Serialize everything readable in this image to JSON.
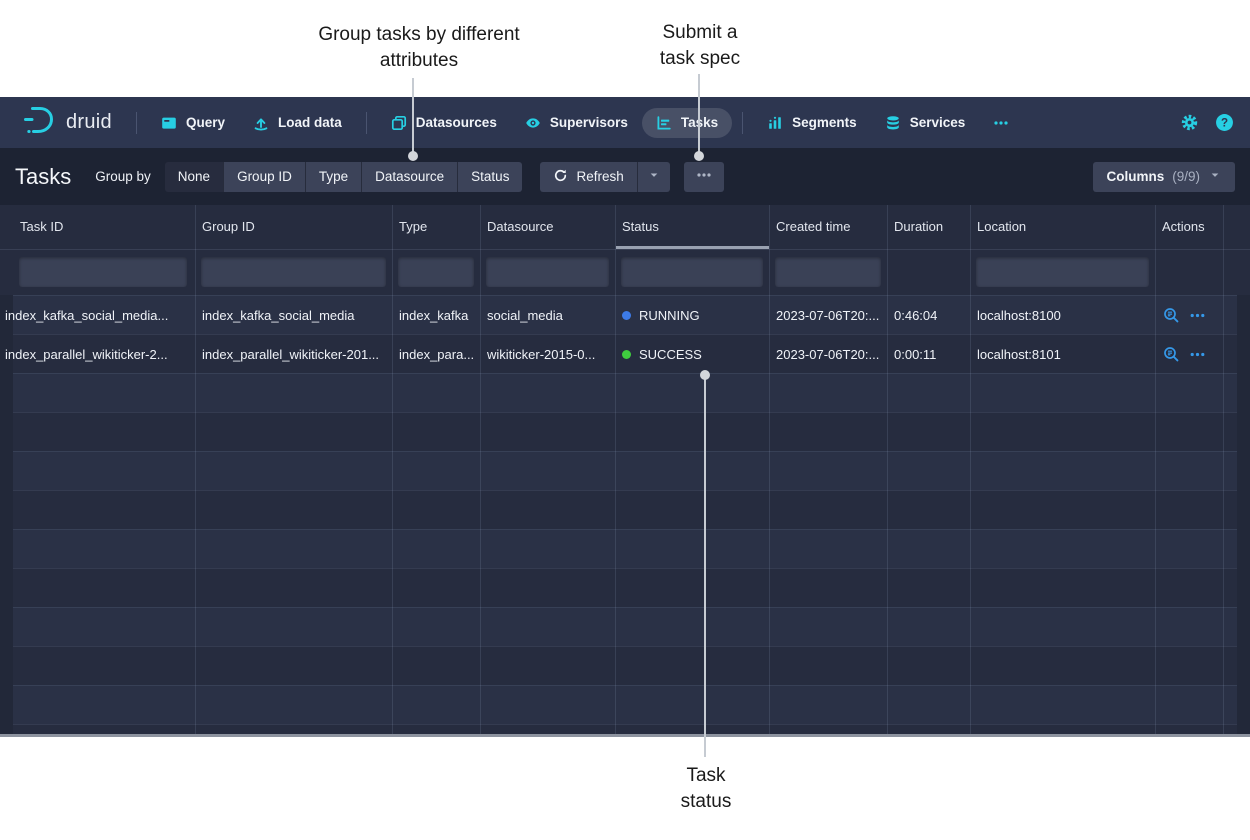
{
  "annotations": {
    "group_by": {
      "line1": "Group tasks by different",
      "line2": "attributes"
    },
    "submit": {
      "line1": "Submit a",
      "line2": "task spec"
    },
    "status": {
      "line1": "Task",
      "line2": "status"
    }
  },
  "navbar": {
    "brand": "druid",
    "items": [
      {
        "label": "Query",
        "icon": "console",
        "active": false,
        "group_end": false
      },
      {
        "label": "Load data",
        "icon": "upload",
        "active": false,
        "group_end": true
      },
      {
        "label": "Datasources",
        "icon": "layers",
        "active": false,
        "group_end": false
      },
      {
        "label": "Supervisors",
        "icon": "eye",
        "active": false,
        "group_end": false
      },
      {
        "label": "Tasks",
        "icon": "gantt",
        "active": true,
        "group_end": true
      },
      {
        "label": "Segments",
        "icon": "barchart",
        "active": false,
        "group_end": false
      },
      {
        "label": "Services",
        "icon": "database",
        "active": false,
        "group_end": false
      },
      {
        "label": "",
        "icon": "more",
        "active": false,
        "group_end": false
      }
    ],
    "right_icons": [
      "gear",
      "help"
    ]
  },
  "toolbar": {
    "title": "Tasks",
    "group_by_label": "Group by",
    "group_options": [
      "None",
      "Group ID",
      "Type",
      "Datasource",
      "Status"
    ],
    "active_group": "None",
    "refresh_label": "Refresh",
    "columns_label": "Columns",
    "columns_count": "(9/9)"
  },
  "table": {
    "columns": [
      {
        "label": "Task ID",
        "key": "task_id",
        "width": 195,
        "filter": true,
        "sorted": false
      },
      {
        "label": "Group ID",
        "key": "group_id",
        "width": 197,
        "filter": true,
        "sorted": false
      },
      {
        "label": "Type",
        "key": "type",
        "width": 88,
        "filter": true,
        "sorted": false
      },
      {
        "label": "Datasource",
        "key": "datasource",
        "width": 135,
        "filter": true,
        "sorted": false
      },
      {
        "label": "Status",
        "key": "status",
        "width": 154,
        "filter": true,
        "sorted": true
      },
      {
        "label": "Created time",
        "key": "created_time",
        "width": 118,
        "filter": true,
        "sorted": false
      },
      {
        "label": "Duration",
        "key": "duration",
        "width": 83,
        "filter": false,
        "sorted": false
      },
      {
        "label": "Location",
        "key": "location",
        "width": 185,
        "filter": true,
        "sorted": false
      },
      {
        "label": "Actions",
        "key": "actions",
        "width": 68,
        "filter": false,
        "sorted": false
      },
      {
        "label": "",
        "key": "spacer",
        "width": 27,
        "filter": false,
        "sorted": false
      }
    ],
    "rows": [
      {
        "task_id": "index_kafka_social_media...",
        "group_id": "index_kafka_social_media",
        "type": "index_kafka",
        "datasource": "social_media",
        "status": "RUNNING",
        "status_color": "running",
        "created_time": "2023-07-06T20:...",
        "duration": "0:46:04",
        "location": "localhost:8100"
      },
      {
        "task_id": "index_parallel_wikiticker-2...",
        "group_id": "index_parallel_wikiticker-201...",
        "type": "index_para...",
        "datasource": "wikiticker-2015-0...",
        "status": "SUCCESS",
        "status_color": "success",
        "created_time": "2023-07-06T20:...",
        "duration": "0:00:11",
        "location": "localhost:8101"
      }
    ],
    "empty_row_count": 10
  },
  "colors": {
    "accent_cyan": "#27cfe3",
    "running": "#3d7be8",
    "success": "#3fcc3f",
    "action_blue": "#3598e8"
  }
}
